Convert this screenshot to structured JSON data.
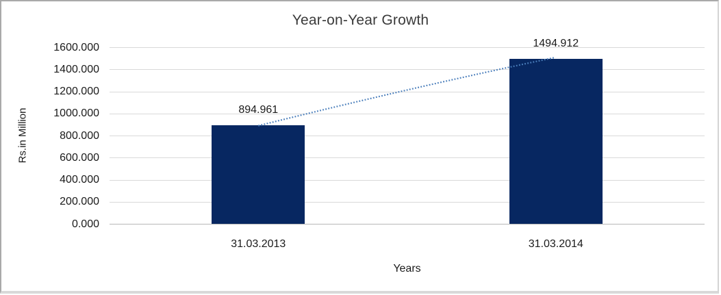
{
  "chart_data": {
    "type": "bar",
    "title": "Year-on-Year Growth",
    "xlabel": "Years",
    "ylabel": "Rs.in Million",
    "categories": [
      "31.03.2013",
      "31.03.2014"
    ],
    "values": [
      894.961,
      1494.912
    ],
    "data_labels": [
      "894.961",
      "1494.912"
    ],
    "ylim": [
      0,
      1600
    ],
    "ytick_step": 200,
    "ytick_labels": [
      "0.000",
      "200.000",
      "400.000",
      "600.000",
      "800.000",
      "1000.000",
      "1200.000",
      "1400.000",
      "1600.000"
    ],
    "grid": true,
    "legend": "none",
    "trendline": {
      "style": "dotted",
      "connects": [
        "894.961 bar top",
        "1494.912 bar top"
      ]
    },
    "colors": {
      "bar": "#072761",
      "trendline": "#4a7ebb",
      "gridline": "#d9d9d9",
      "axis_line": "#b7b7b7",
      "text": "#1a1a1a",
      "frame_border": "#a9a9a9"
    }
  }
}
